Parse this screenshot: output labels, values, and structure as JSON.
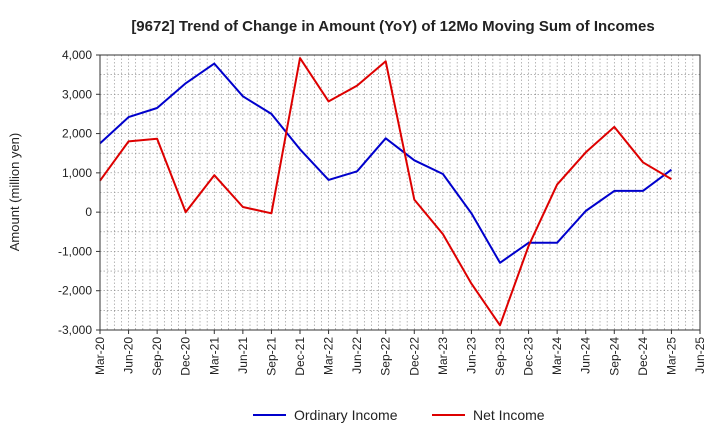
{
  "chart_data": {
    "type": "line",
    "title": "[9672]  Trend of Change in Amount (YoY) of 12Mo Moving Sum of Incomes",
    "xlabel": "",
    "ylabel": "Amount (million yen)",
    "ylim": [
      -3000,
      4000
    ],
    "yticks": [
      4000,
      3000,
      2000,
      1000,
      0,
      -1000,
      -2000,
      -3000
    ],
    "ytick_labels": [
      "4,000",
      "3,000",
      "2,000",
      "1,000",
      "0",
      "-1,000",
      "-2,000",
      "-3,000"
    ],
    "x": [
      "Mar-20",
      "Jun-20",
      "Sep-20",
      "Dec-20",
      "Mar-21",
      "Jun-21",
      "Sep-21",
      "Dec-21",
      "Mar-22",
      "Jun-22",
      "Sep-22",
      "Dec-22",
      "Mar-23",
      "Jun-23",
      "Sep-23",
      "Dec-23",
      "Mar-24",
      "Jun-24",
      "Sep-24",
      "Dec-24",
      "Mar-25",
      "Jun-25"
    ],
    "grid": true,
    "legend_position": "bottom",
    "series": [
      {
        "name": "Ordinary Income",
        "color": "#0000cc",
        "values": [
          1750,
          2420,
          2650,
          3280,
          3780,
          2950,
          2500,
          1600,
          820,
          1040,
          1880,
          1320,
          970,
          -30,
          -1290,
          -780,
          -780,
          30,
          540,
          540,
          1080,
          null
        ]
      },
      {
        "name": "Net Income",
        "color": "#dd0000",
        "values": [
          800,
          1800,
          1870,
          0,
          940,
          130,
          -30,
          3920,
          2820,
          3220,
          3840,
          320,
          -560,
          -1820,
          -2880,
          -860,
          700,
          1520,
          2170,
          1270,
          840,
          null
        ]
      }
    ]
  }
}
